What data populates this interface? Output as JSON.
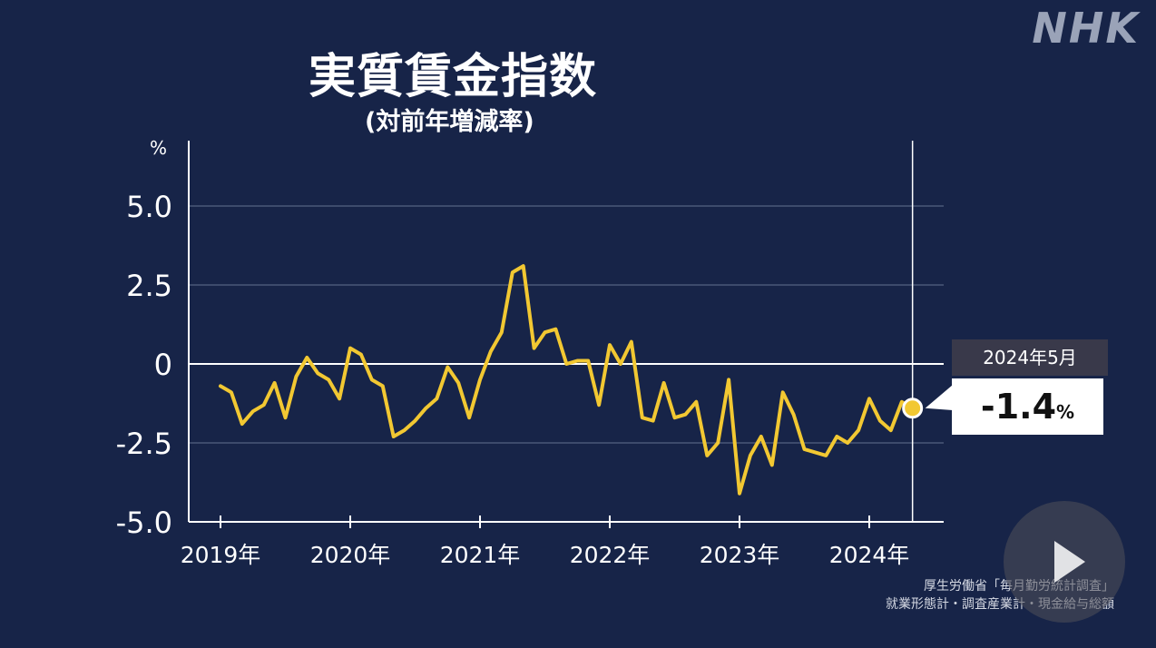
{
  "logo": "NHK",
  "source": {
    "line1": "厚生労働省「毎月勤労統計調査」",
    "line2": "就業形態計・調査産業計・現金給与総額"
  },
  "callout": {
    "date": "2024年5月",
    "value": "-1.4",
    "unit": "%"
  },
  "colors": {
    "background": "#172448",
    "line": "#f2c832",
    "axis": "#ffffff",
    "grid": "#4a5878"
  },
  "chart_data": {
    "type": "line",
    "title": "実質賃金指数",
    "subtitle": "(対前年増減率)",
    "yunit": "%",
    "ylim": [
      -5.0,
      5.0
    ],
    "yticks": [
      5.0,
      2.5,
      0,
      -2.5,
      -5.0
    ],
    "ytick_labels": [
      "5.0",
      "2.5",
      "0",
      "-2.5",
      "-5.0"
    ],
    "xlim": [
      "2019-01",
      "2024-05"
    ],
    "xticks": [
      "2019-01",
      "2020-01",
      "2021-01",
      "2022-01",
      "2023-01",
      "2024-01"
    ],
    "xtick_labels": [
      "2019年",
      "2020年",
      "2021年",
      "2022年",
      "2023年",
      "2024年"
    ],
    "grid": true,
    "series": [
      {
        "x": [
          "2019-01",
          "2019-02",
          "2019-03",
          "2019-04",
          "2019-05",
          "2019-06",
          "2019-07",
          "2019-08",
          "2019-09",
          "2019-10",
          "2019-11",
          "2019-12",
          "2020-01",
          "2020-02",
          "2020-03",
          "2020-04",
          "2020-05",
          "2020-06",
          "2020-07",
          "2020-08",
          "2020-09",
          "2020-10",
          "2020-11",
          "2020-12",
          "2021-01",
          "2021-02",
          "2021-03",
          "2021-04",
          "2021-05",
          "2021-06",
          "2021-07",
          "2021-08",
          "2021-09",
          "2021-10",
          "2021-11",
          "2021-12",
          "2022-01",
          "2022-02",
          "2022-03",
          "2022-04",
          "2022-05",
          "2022-06",
          "2022-07",
          "2022-08",
          "2022-09",
          "2022-10",
          "2022-11",
          "2022-12",
          "2023-01",
          "2023-02",
          "2023-03",
          "2023-04",
          "2023-05",
          "2023-06",
          "2023-07",
          "2023-08",
          "2023-09",
          "2023-10",
          "2023-11",
          "2023-12",
          "2024-01",
          "2024-02",
          "2024-03",
          "2024-04",
          "2024-05"
        ],
        "values": [
          -0.7,
          -0.9,
          -1.9,
          -1.5,
          -1.3,
          -0.6,
          -1.7,
          -0.4,
          0.2,
          -0.3,
          -0.5,
          -1.1,
          0.5,
          0.3,
          -0.5,
          -0.7,
          -2.3,
          -2.1,
          -1.8,
          -1.4,
          -1.1,
          -0.1,
          -0.6,
          -1.7,
          -0.5,
          0.4,
          1.0,
          2.9,
          3.1,
          0.5,
          1.0,
          1.1,
          0.0,
          0.1,
          0.1,
          -1.3,
          0.6,
          0.0,
          0.7,
          -1.7,
          -1.8,
          -0.6,
          -1.7,
          -1.6,
          -1.2,
          -2.9,
          -2.5,
          -0.5,
          -4.1,
          -2.9,
          -2.3,
          -3.2,
          -0.9,
          -1.6,
          -2.7,
          -2.8,
          -2.9,
          -2.3,
          -2.5,
          -2.1,
          -1.1,
          -1.8,
          -2.1,
          -1.2,
          -1.4
        ]
      }
    ]
  }
}
